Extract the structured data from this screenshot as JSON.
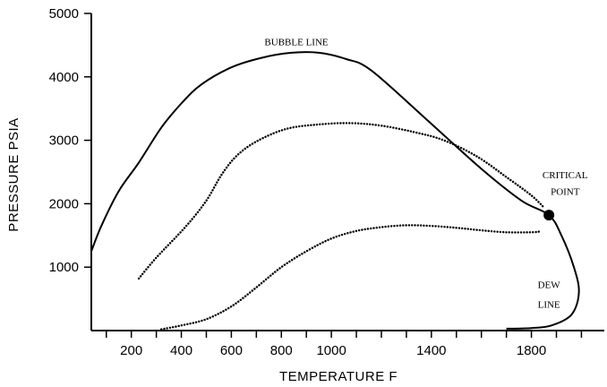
{
  "chart_data": {
    "type": "line",
    "title": "",
    "xlabel": "TEMPERATURE   F",
    "ylabel": "PRESSURE   PSIA",
    "xlim": [
      40,
      2000
    ],
    "ylim": [
      0,
      5000
    ],
    "x_tick_values": [
      200,
      400,
      600,
      800,
      1000,
      1400,
      1800
    ],
    "x_tick_labels": [
      "200",
      "400",
      "600",
      "800",
      "1000",
      "1400",
      "1800"
    ],
    "x_minor_step": 100,
    "y_tick_values": [
      1000,
      2000,
      3000,
      4000,
      5000
    ],
    "y_tick_labels": [
      "1000",
      "2000",
      "3000",
      "4000",
      "5000"
    ],
    "grid": false,
    "series": [
      {
        "name": "",
        "style": "solid",
        "points": [
          [
            40,
            1250
          ],
          [
            80,
            1650
          ],
          [
            150,
            2200
          ],
          [
            230,
            2650
          ],
          [
            320,
            3200
          ],
          [
            400,
            3580
          ],
          [
            480,
            3880
          ],
          [
            600,
            4150
          ],
          [
            720,
            4300
          ],
          [
            840,
            4380
          ],
          [
            950,
            4380
          ],
          [
            1060,
            4280
          ],
          [
            1160,
            4100
          ],
          [
            1380,
            3330
          ],
          [
            1600,
            2550
          ],
          [
            1760,
            2050
          ],
          [
            1870,
            1820
          ],
          [
            1920,
            1500
          ],
          [
            1970,
            1000
          ],
          [
            1990,
            600
          ],
          [
            1960,
            250
          ],
          [
            1880,
            80
          ],
          [
            1800,
            40
          ],
          [
            1700,
            30
          ]
        ]
      },
      {
        "name": "",
        "style": "dotted",
        "points": [
          [
            230,
            820
          ],
          [
            300,
            1150
          ],
          [
            420,
            1650
          ],
          [
            500,
            2050
          ],
          [
            560,
            2450
          ],
          [
            620,
            2750
          ],
          [
            700,
            2980
          ],
          [
            820,
            3180
          ],
          [
            950,
            3250
          ],
          [
            1080,
            3270
          ],
          [
            1200,
            3230
          ],
          [
            1330,
            3130
          ],
          [
            1450,
            3000
          ],
          [
            1580,
            2750
          ],
          [
            1700,
            2420
          ],
          [
            1800,
            2130
          ],
          [
            1850,
            1940
          ]
        ]
      },
      {
        "name": "",
        "style": "dotted",
        "points": [
          [
            320,
            20
          ],
          [
            400,
            80
          ],
          [
            500,
            180
          ],
          [
            600,
            380
          ],
          [
            700,
            680
          ],
          [
            800,
            1000
          ],
          [
            900,
            1250
          ],
          [
            1000,
            1450
          ],
          [
            1100,
            1570
          ],
          [
            1200,
            1630
          ],
          [
            1300,
            1660
          ],
          [
            1400,
            1650
          ],
          [
            1500,
            1620
          ],
          [
            1600,
            1580
          ],
          [
            1700,
            1550
          ],
          [
            1800,
            1550
          ],
          [
            1830,
            1560
          ]
        ]
      }
    ],
    "points": [
      {
        "label": "CRITICAL POINT",
        "x": 1870,
        "y": 1820
      }
    ],
    "annotations": [
      {
        "text": "BUBBLE LINE",
        "x": 860,
        "y": 4500
      },
      {
        "text": "CRITICAL",
        "x": 1935,
        "y": 2400
      },
      {
        "text": "POINT",
        "x": 1935,
        "y": 2140
      },
      {
        "text": "DEW",
        "x": 1870,
        "y": 670
      },
      {
        "text": "LINE",
        "x": 1870,
        "y": 360
      }
    ]
  }
}
